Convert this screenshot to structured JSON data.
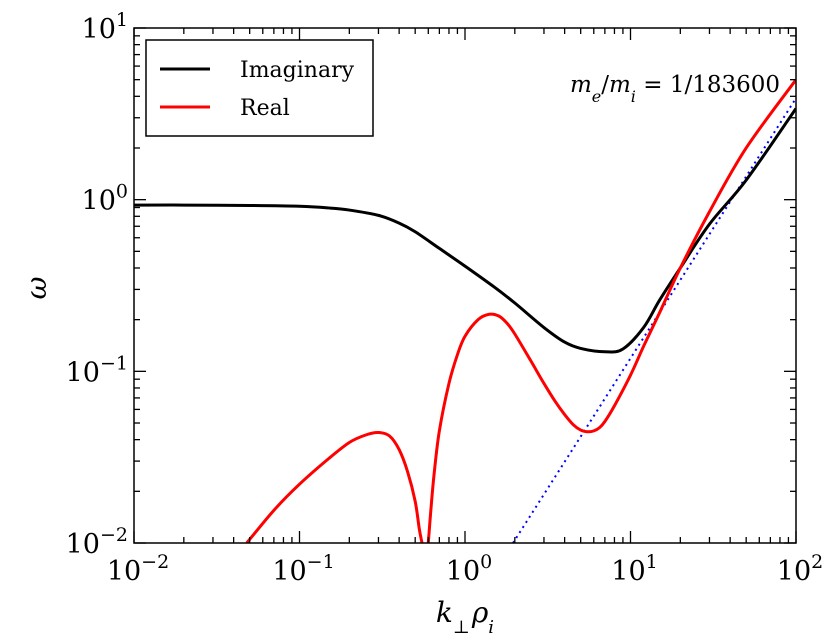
{
  "chart_data": {
    "type": "line",
    "scale": {
      "x": "log",
      "y": "log"
    },
    "xlim": [
      0.01,
      100
    ],
    "ylim": [
      0.01,
      10
    ],
    "xlabel": "k⊥ρi",
    "ylabel": "ω",
    "grid": false,
    "legend": {
      "position": "top-left",
      "entries": [
        "Imaginary",
        "Real"
      ]
    },
    "annotation": "m_e/m_i = 1/183600",
    "x_ticks": [
      {
        "base": "10",
        "exp": "−2"
      },
      {
        "base": "10",
        "exp": "−1"
      },
      {
        "base": "10",
        "exp": "0"
      },
      {
        "base": "10",
        "exp": "1"
      },
      {
        "base": "10",
        "exp": "2"
      }
    ],
    "y_ticks": [
      {
        "base": "10",
        "exp": "−2"
      },
      {
        "base": "10",
        "exp": "−1"
      },
      {
        "base": "10",
        "exp": "0"
      },
      {
        "base": "10",
        "exp": "1"
      }
    ],
    "series": [
      {
        "name": "Imaginary",
        "color": "#000000",
        "style": "solid",
        "x": [
          0.01,
          0.02,
          0.05,
          0.1,
          0.15,
          0.2,
          0.3,
          0.4,
          0.5,
          0.7,
          1.0,
          1.5,
          2.0,
          3.0,
          4.0,
          5.0,
          7.0,
          9.0,
          12,
          15,
          20,
          30,
          50,
          100
        ],
        "y": [
          0.93,
          0.93,
          0.925,
          0.915,
          0.895,
          0.87,
          0.81,
          0.73,
          0.65,
          0.52,
          0.41,
          0.31,
          0.25,
          0.18,
          0.148,
          0.136,
          0.13,
          0.135,
          0.18,
          0.26,
          0.4,
          0.72,
          1.3,
          3.4
        ]
      },
      {
        "name": "Real",
        "color": "#ff0000",
        "style": "solid",
        "segments": [
          {
            "x": [
              0.048,
              0.07,
              0.1,
              0.15,
              0.2,
              0.25,
              0.3,
              0.35,
              0.4,
              0.45,
              0.5,
              0.53,
              0.55
            ],
            "y": [
              0.01,
              0.0155,
              0.022,
              0.031,
              0.0385,
              0.0425,
              0.044,
              0.042,
              0.035,
              0.026,
              0.0175,
              0.012,
              0.01
            ]
          },
          {
            "x": [
              0.6,
              0.62,
              0.65,
              0.7,
              0.8,
              0.9,
              1.0,
              1.2,
              1.4,
              1.6,
              1.8,
              2.0,
              2.5,
              3.0,
              3.5,
              4.0,
              4.5,
              5.0,
              5.5,
              6.0,
              6.5,
              7.0,
              8.0,
              10,
              12,
              15,
              20,
              30,
              50,
              100
            ],
            "y": [
              0.01,
              0.015,
              0.025,
              0.045,
              0.085,
              0.125,
              0.16,
              0.2,
              0.215,
              0.21,
              0.19,
              0.165,
              0.115,
              0.085,
              0.067,
              0.056,
              0.049,
              0.0455,
              0.0445,
              0.045,
              0.047,
              0.051,
              0.063,
              0.095,
              0.14,
              0.22,
              0.4,
              0.85,
              2.0,
              5.0
            ]
          }
        ]
      },
      {
        "name": "asymptote",
        "color": "#0000ff",
        "style": "dotted",
        "x": [
          1.95,
          100
        ],
        "y": [
          0.01,
          3.9
        ]
      }
    ]
  }
}
